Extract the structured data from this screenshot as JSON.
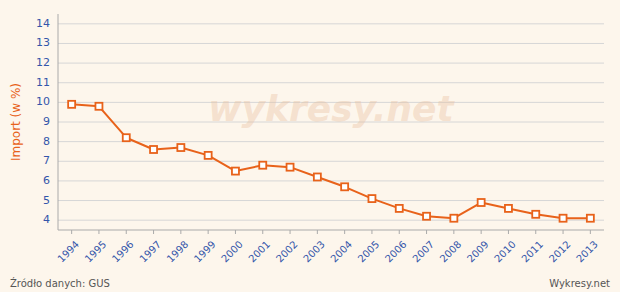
{
  "chart_data": {
    "type": "line",
    "y_label": "Import (w %)",
    "x": [
      1994,
      1995,
      1996,
      1997,
      1998,
      1999,
      2000,
      2001,
      2002,
      2003,
      2004,
      2005,
      2006,
      2007,
      2008,
      2009,
      2010,
      2011,
      2012,
      2013
    ],
    "values": [
      9.9,
      9.8,
      8.2,
      7.6,
      7.7,
      7.3,
      6.5,
      6.8,
      6.7,
      6.2,
      5.7,
      5.1,
      4.6,
      4.2,
      4.1,
      4.9,
      4.6,
      4.3,
      4.1,
      4.1
    ],
    "color": "#E8621A",
    "marker": "square",
    "xlim": [
      1993.5,
      2013.5
    ],
    "xticks": [
      1994,
      1995,
      1996,
      1997,
      1998,
      1999,
      2000,
      2001,
      2002,
      2003,
      2004,
      2005,
      2006,
      2007,
      2008,
      2009,
      2010,
      2011,
      2012,
      2013
    ],
    "ylim": [
      3.5,
      14.5
    ],
    "yticks": [
      4,
      5,
      6,
      7,
      8,
      9,
      10,
      11,
      12,
      13,
      14
    ],
    "grid": true,
    "annotations": [
      "Źródło danych:  GUS",
      "Wykresy.net",
      "wykresy.net"
    ]
  }
}
